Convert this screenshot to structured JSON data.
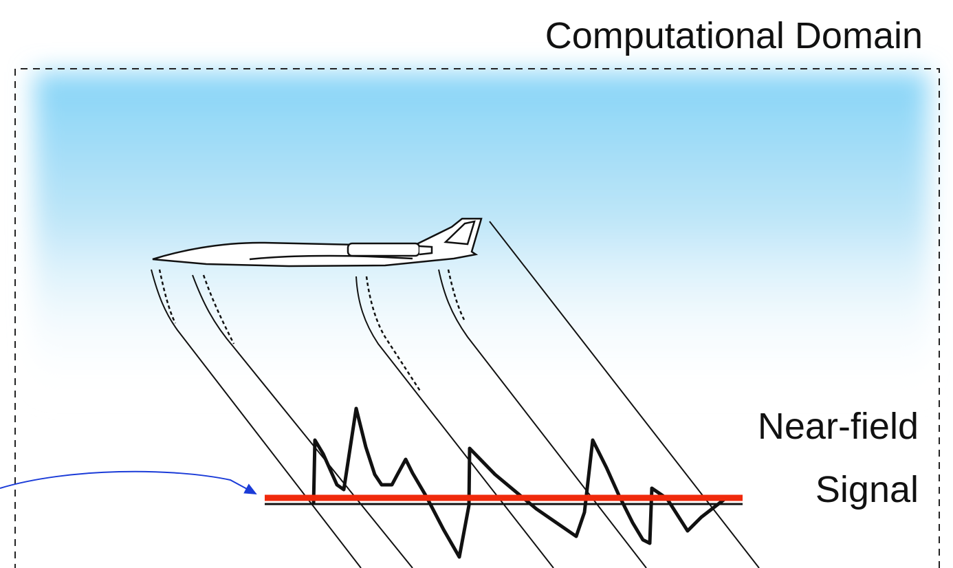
{
  "labels": {
    "domain": "Computational Domain",
    "near_field": "Near-field",
    "signal": "Signal"
  }
}
